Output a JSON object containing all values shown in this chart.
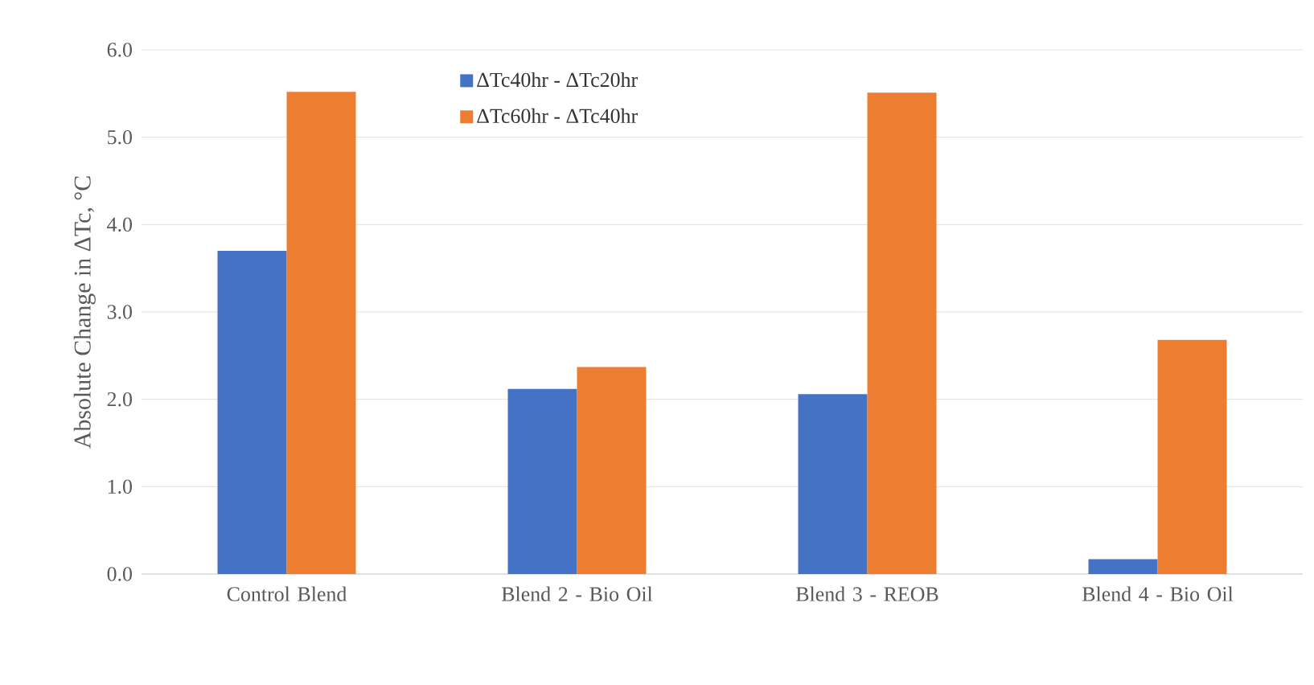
{
  "chart_data": {
    "type": "bar",
    "ylabel": "Absolute  Change in ΔTc, °C",
    "categories": [
      "Control Blend",
      "Blend 2 - Bio Oil",
      "Blend 3 - REOB",
      "Blend 4 - Bio Oil"
    ],
    "series": [
      {
        "name": "ΔTc40hr - ΔTc20hr",
        "color": "#4472c4",
        "values": [
          3.7,
          2.12,
          2.06,
          0.17
        ]
      },
      {
        "name": "ΔTc60hr - ΔTc40hr",
        "color": "#ed7d31",
        "values": [
          5.52,
          2.37,
          5.51,
          2.68
        ]
      }
    ],
    "ylim": [
      0,
      6
    ],
    "yticks": [
      {
        "value": 0,
        "label": "0.0"
      },
      {
        "value": 1,
        "label": "1.0"
      },
      {
        "value": 2,
        "label": "2.0"
      },
      {
        "value": 3,
        "label": "3.0"
      },
      {
        "value": 4,
        "label": "4.0"
      },
      {
        "value": 5,
        "label": "5.0"
      },
      {
        "value": 6,
        "label": "6.0"
      }
    ],
    "grid": "y",
    "legend": "top left"
  }
}
